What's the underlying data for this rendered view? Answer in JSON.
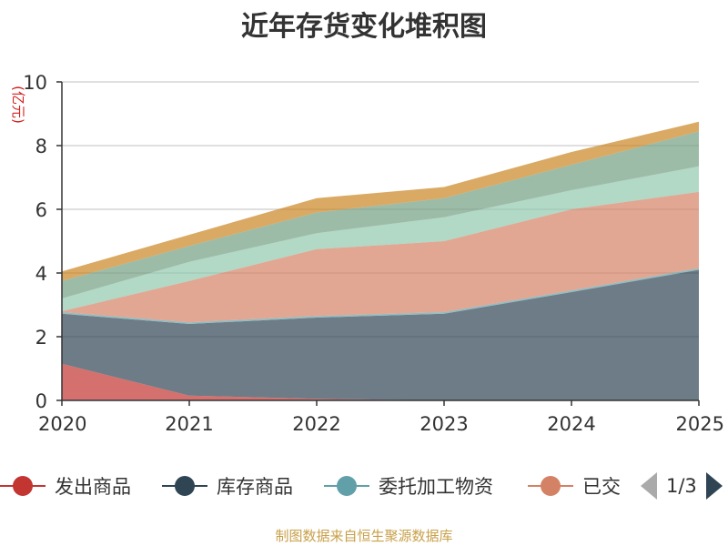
{
  "chart_data": {
    "type": "area",
    "stacked": true,
    "title": "近年存货变化堆积图",
    "ylabel": "(亿元)",
    "ylim": [
      0,
      10
    ],
    "yticks": [
      0,
      2,
      4,
      6,
      8,
      10
    ],
    "x": [
      "2020",
      "2021",
      "2022",
      "2023",
      "2024",
      "2025"
    ],
    "grid": true,
    "series": [
      {
        "name": "发出商品",
        "color": "#c23531",
        "values": [
          1.15,
          0.15,
          0.05,
          0.0,
          0.0,
          0.0
        ]
      },
      {
        "name": "库存商品",
        "color": "#2f4554",
        "values": [
          1.57,
          2.25,
          2.55,
          2.72,
          3.4,
          4.1
        ]
      },
      {
        "name": "委托加工物资",
        "color": "#61a0a8",
        "values": [
          0.05,
          0.05,
          0.05,
          0.05,
          0.05,
          0.05
        ]
      },
      {
        "name": "已交",
        "color": "#d48265",
        "values": [
          0.03,
          1.3,
          2.1,
          2.23,
          2.55,
          2.4
        ]
      },
      {
        "name": "",
        "color": "#91c7ae",
        "values": [
          0.4,
          0.6,
          0.5,
          0.75,
          0.6,
          0.8
        ]
      },
      {
        "name": "",
        "color": "#749f83",
        "values": [
          0.55,
          0.5,
          0.65,
          0.6,
          0.8,
          1.1
        ]
      },
      {
        "name": "",
        "color": "#ca8622",
        "values": [
          0.3,
          0.35,
          0.45,
          0.35,
          0.4,
          0.3
        ]
      }
    ]
  },
  "legend": {
    "items": [
      {
        "label": "发出商品",
        "color": "#c23531"
      },
      {
        "label": "库存商品",
        "color": "#2f4554"
      },
      {
        "label": "委托加工物资",
        "color": "#61a0a8"
      },
      {
        "label": "已交",
        "color": "#d48265"
      }
    ],
    "page_text": "1/3"
  },
  "footer": {
    "source": "制图数据来自恒生聚源数据库"
  }
}
